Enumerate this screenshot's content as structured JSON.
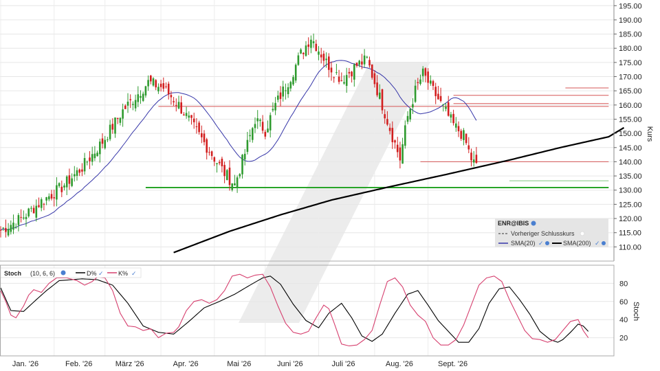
{
  "chart_data": [
    {
      "type": "candlestick",
      "symbol": "ENR@IBIS",
      "ylabel": "Kurs",
      "ylim": [
        105,
        197
      ],
      "y_ticks": [
        "110.00",
        "115.00",
        "120.00",
        "125.00",
        "130.00",
        "135.00",
        "140.00",
        "145.00",
        "150.00",
        "155.00",
        "160.00",
        "165.00",
        "170.00",
        "175.00",
        "180.00",
        "185.00",
        "190.00",
        "195.00"
      ],
      "x_ticks": [
        "Jan. '26",
        "Feb. '26",
        "März '26",
        "Apr. '26",
        "Mai '26",
        "Juni '26",
        "Juli '26",
        "Aug. '26",
        "Sept. '26"
      ],
      "n_days": 188,
      "legend": {
        "title": "ENR@IBIS",
        "items": [
          "Vorheriger Schlusskurs",
          "SMA(20)",
          "SMA(200)"
        ]
      },
      "colors": {
        "up": "#2e9a2e",
        "down": "#d21e1e",
        "sma20": "#3535a8",
        "sma200": "#000000",
        "res": "#d65555",
        "sup": "#28a428",
        "supLight": "#7fc27f"
      },
      "close_anchors": [
        [
          0,
          116
        ],
        [
          8,
          120
        ],
        [
          16,
          126
        ],
        [
          24,
          131
        ],
        [
          32,
          138
        ],
        [
          40,
          147
        ],
        [
          48,
          158
        ],
        [
          54,
          164
        ],
        [
          58,
          168
        ],
        [
          64,
          166
        ],
        [
          70,
          160
        ],
        [
          76,
          152
        ],
        [
          82,
          144
        ],
        [
          88,
          136
        ],
        [
          92,
          132
        ],
        [
          96,
          143
        ],
        [
          100,
          155
        ],
        [
          104,
          151
        ],
        [
          108,
          160
        ],
        [
          114,
          170
        ],
        [
          118,
          178
        ],
        [
          122,
          184
        ],
        [
          128,
          175
        ],
        [
          134,
          169
        ],
        [
          140,
          174
        ],
        [
          144,
          176
        ],
        [
          147,
          168
        ],
        [
          150,
          160
        ],
        [
          154,
          149
        ],
        [
          157,
          141
        ],
        [
          160,
          156
        ],
        [
          163,
          165
        ],
        [
          166,
          171
        ],
        [
          170,
          165
        ],
        [
          174,
          159
        ],
        [
          178,
          153
        ],
        [
          182,
          149
        ],
        [
          185,
          141
        ],
        [
          188,
          137
        ],
        [
          191,
          133
        ],
        [
          194,
          142
        ],
        [
          198,
          150
        ],
        [
          202,
          155
        ],
        [
          206,
          162
        ],
        [
          210,
          160
        ],
        [
          214,
          155
        ],
        [
          218,
          153
        ],
        [
          222,
          148
        ],
        [
          226,
          143
        ],
        [
          229,
          147
        ],
        [
          232,
          143
        ],
        [
          235,
          137
        ],
        [
          237,
          134
        ],
        [
          239,
          136
        ]
      ],
      "sma200_anchors": [
        [
          68,
          108
        ],
        [
          90,
          115.5
        ],
        [
          110,
          121.3
        ],
        [
          130,
          126.5
        ],
        [
          152,
          131
        ],
        [
          175,
          135.5
        ],
        [
          200,
          140.6
        ],
        [
          220,
          145
        ],
        [
          239,
          148.8
        ],
        [
          245,
          152
        ]
      ],
      "resistance_lines": [
        {
          "x0": 62,
          "x1": 239,
          "y": 159.5
        },
        {
          "x0": 178,
          "x1": 239,
          "y": 160.5
        },
        {
          "x0": 178,
          "x1": 239,
          "y": 163.4
        },
        {
          "x0": 222,
          "x1": 239,
          "y": 166
        },
        {
          "x0": 165,
          "x1": 239,
          "y": 140
        }
      ],
      "support_lines": [
        {
          "x0": 57,
          "x1": 239,
          "y": 130.9,
          "weight": "heavy"
        },
        {
          "x0": 200,
          "x1": 239,
          "y": 133.3,
          "weight": "light"
        }
      ]
    },
    {
      "type": "line",
      "label": "Stoch",
      "params": "(10, 6, 6)",
      "ylabel": "Stoch",
      "ylim": [
        0,
        100
      ],
      "y_ticks": [
        "20",
        "40",
        "60",
        "80"
      ],
      "series": [
        {
          "name": "D%",
          "color": "#000000",
          "anchors": [
            [
              0,
              75
            ],
            [
              4,
              50
            ],
            [
              9,
              49
            ],
            [
              14,
              62
            ],
            [
              18,
              72
            ],
            [
              23,
              83
            ],
            [
              28,
              84
            ],
            [
              32,
              85
            ],
            [
              38,
              84
            ],
            [
              44,
              78
            ],
            [
              50,
              58
            ],
            [
              56,
              33
            ],
            [
              62,
              26
            ],
            [
              68,
              24
            ],
            [
              74,
              38
            ],
            [
              80,
              53
            ],
            [
              86,
              60
            ],
            [
              92,
              68
            ],
            [
              98,
              78
            ],
            [
              103,
              86
            ],
            [
              106,
              88
            ],
            [
              110,
              79
            ],
            [
              115,
              57
            ],
            [
              120,
              39
            ],
            [
              125,
              31
            ],
            [
              129,
              47
            ],
            [
              134,
              58
            ],
            [
              138,
              42
            ],
            [
              142,
              22
            ],
            [
              146,
              16
            ],
            [
              150,
              24
            ],
            [
              155,
              47
            ],
            [
              160,
              68
            ],
            [
              164,
              72
            ],
            [
              168,
              56
            ],
            [
              172,
              39
            ],
            [
              176,
              27
            ],
            [
              180,
              15
            ],
            [
              184,
              15
            ],
            [
              188,
              30
            ],
            [
              192,
              58
            ],
            [
              196,
              74
            ],
            [
              200,
              76
            ],
            [
              204,
              62
            ],
            [
              208,
              46
            ],
            [
              212,
              27
            ],
            [
              216,
              18
            ],
            [
              219,
              15
            ],
            [
              221,
              18
            ],
            [
              224,
              26
            ],
            [
              227,
              35
            ],
            [
              229,
              33
            ],
            [
              231,
              27
            ]
          ]
        },
        {
          "name": "K%",
          "color": "#d63f6e",
          "anchors": [
            [
              0,
              72
            ],
            [
              2,
              60
            ],
            [
              4,
              45
            ],
            [
              6,
              42
            ],
            [
              9,
              55
            ],
            [
              11,
              67
            ],
            [
              13,
              73
            ],
            [
              16,
              70
            ],
            [
              19,
              80
            ],
            [
              22,
              86
            ],
            [
              26,
              86
            ],
            [
              30,
              83
            ],
            [
              33,
              78
            ],
            [
              36,
              82
            ],
            [
              38,
              87
            ],
            [
              41,
              86
            ],
            [
              44,
              72
            ],
            [
              47,
              47
            ],
            [
              50,
              33
            ],
            [
              53,
              32
            ],
            [
              56,
              28
            ],
            [
              59,
              30
            ],
            [
              62,
              20
            ],
            [
              65,
              25
            ],
            [
              68,
              26
            ],
            [
              70,
              32
            ],
            [
              73,
              50
            ],
            [
              76,
              60
            ],
            [
              79,
              62
            ],
            [
              82,
              58
            ],
            [
              85,
              62
            ],
            [
              88,
              72
            ],
            [
              91,
              88
            ],
            [
              94,
              90
            ],
            [
              97,
              86
            ],
            [
              100,
              89
            ],
            [
              103,
              90
            ],
            [
              106,
              76
            ],
            [
              109,
              55
            ],
            [
              112,
              36
            ],
            [
              115,
              26
            ],
            [
              118,
              24
            ],
            [
              121,
              27
            ],
            [
              124,
              42
            ],
            [
              127,
              56
            ],
            [
              129,
              52
            ],
            [
              131,
              37
            ],
            [
              134,
              13
            ],
            [
              137,
              11
            ],
            [
              140,
              12
            ],
            [
              143,
              18
            ],
            [
              146,
              28
            ],
            [
              149,
              56
            ],
            [
              152,
              82
            ],
            [
              155,
              86
            ],
            [
              158,
              76
            ],
            [
              161,
              56
            ],
            [
              164,
              45
            ],
            [
              167,
              38
            ],
            [
              170,
              20
            ],
            [
              173,
              12
            ],
            [
              176,
              12
            ],
            [
              179,
              18
            ],
            [
              182,
              34
            ],
            [
              185,
              56
            ],
            [
              188,
              78
            ],
            [
              191,
              86
            ],
            [
              194,
              88
            ],
            [
              197,
              82
            ],
            [
              200,
              62
            ],
            [
              203,
              45
            ],
            [
              206,
              28
            ],
            [
              209,
              19
            ],
            [
              212,
              18
            ],
            [
              215,
              15
            ],
            [
              218,
              18
            ],
            [
              221,
              28
            ],
            [
              224,
              38
            ],
            [
              227,
              40
            ],
            [
              229,
              28
            ],
            [
              231,
              20
            ]
          ]
        }
      ]
    }
  ]
}
